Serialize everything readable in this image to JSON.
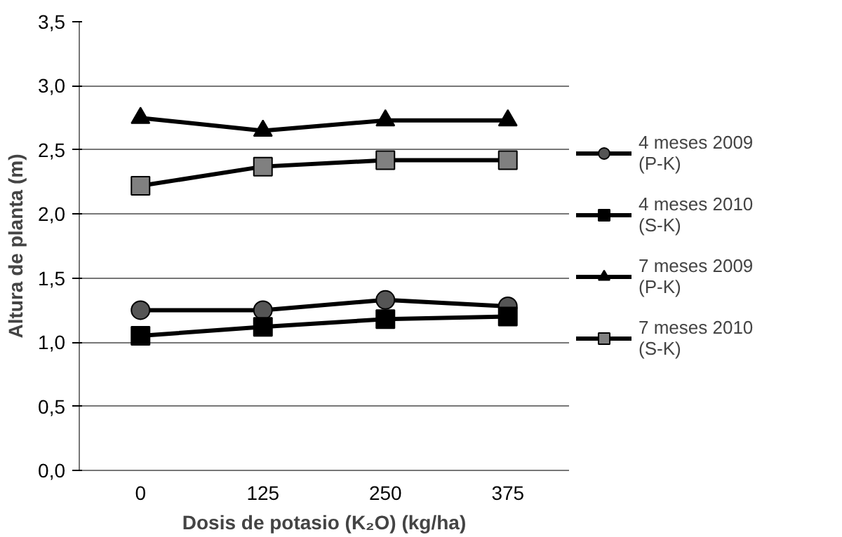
{
  "chart_data": {
    "type": "line",
    "xlabel": "Dosis de potasio (K₂O) (kg/ha)",
    "ylabel": "Altura de planta (m)",
    "categories": [
      "0",
      "125",
      "250",
      "375"
    ],
    "series": [
      {
        "name": "4 meses 2009 (P-K)",
        "color": "#555555",
        "marker": "circle",
        "values": [
          1.25,
          1.25,
          1.33,
          1.28
        ]
      },
      {
        "name": "4 meses 2010 (S-K)",
        "color": "#000000",
        "marker": "square",
        "values": [
          1.05,
          1.12,
          1.18,
          1.2
        ]
      },
      {
        "name": "7 meses 2009 (P-K)",
        "color": "#000000",
        "marker": "triangle",
        "values": [
          2.75,
          2.65,
          2.73,
          2.73
        ]
      },
      {
        "name": "7 meses 2010 (S-K)",
        "color": "#808080",
        "marker": "square",
        "values": [
          2.22,
          2.37,
          2.42,
          2.42
        ]
      }
    ],
    "ylim": [
      0,
      3.5
    ],
    "yticks": [
      {
        "value": 0,
        "label": "0,0"
      },
      {
        "value": 0.5,
        "label": "0,5"
      },
      {
        "value": 1,
        "label": "1,0"
      },
      {
        "value": 1.5,
        "label": "1,5"
      },
      {
        "value": 2,
        "label": "2,0"
      },
      {
        "value": 2.5,
        "label": "2,5"
      },
      {
        "value": 3,
        "label": "3,0"
      },
      {
        "value": 3.5,
        "label": "3,5"
      }
    ],
    "grid": "y",
    "legend": "right"
  }
}
